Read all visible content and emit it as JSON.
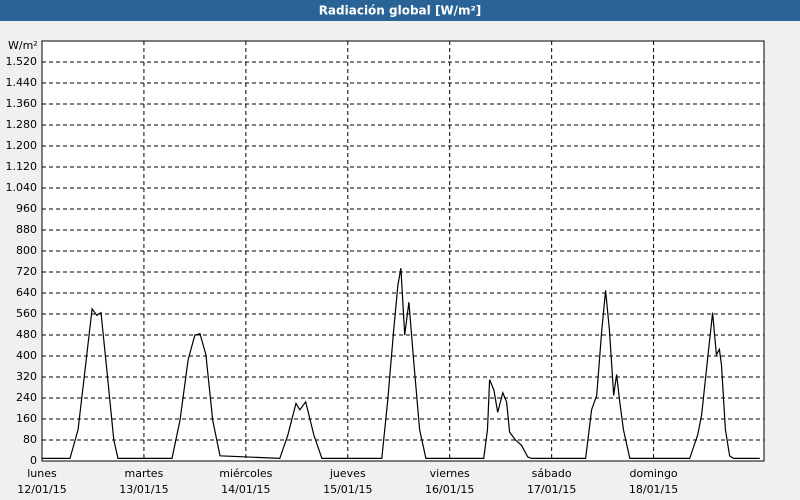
{
  "chart_data": {
    "type": "line",
    "title": "Radiación global [W/m²]",
    "y_unit": "W/m²",
    "x": [
      0,
      6.6,
      8.5,
      10.4,
      11.8,
      12.9,
      13.9,
      15.5,
      16.9,
      17.9,
      30.6,
      32.5,
      34.4,
      36,
      37.2,
      38.6,
      40.2,
      41.9,
      56,
      57.9,
      59.8,
      60.7,
      62.1,
      64,
      65.9,
      80,
      81.4,
      82.8,
      83.8,
      84.5,
      85.4,
      86.4,
      87.5,
      88.9,
      90.4,
      104,
      104.9,
      105.4,
      106.4,
      107.3,
      108.5,
      109.4,
      110.1,
      111.5,
      112.9,
      114.4,
      115.3,
      128,
      129.4,
      130.6,
      131.8,
      132.7,
      133.6,
      134.6,
      135.3,
      136,
      136.9,
      138.4,
      152.5,
      154.4,
      155.3,
      156.7,
      157.9,
      158.8,
      159.5,
      160,
      160.9,
      161.9,
      162.8,
      169
    ],
    "values": [
      10,
      10,
      120,
      385,
      580,
      555,
      565,
      310,
      80,
      10,
      10,
      155,
      385,
      480,
      485,
      405,
      155,
      20,
      10,
      100,
      220,
      195,
      225,
      100,
      10,
      10,
      230,
      500,
      670,
      735,
      480,
      605,
      385,
      120,
      10,
      10,
      120,
      310,
      270,
      185,
      260,
      225,
      110,
      80,
      60,
      15,
      10,
      10,
      195,
      250,
      500,
      650,
      500,
      250,
      330,
      230,
      120,
      10,
      10,
      100,
      175,
      385,
      565,
      405,
      425,
      365,
      120,
      20,
      10,
      10
    ],
    "color": "#000000",
    "xlim": [
      0,
      170
    ],
    "xticks": [
      {
        "value": 0,
        "label": "lunes",
        "date": "12/01/15"
      },
      {
        "value": 24,
        "label": "martes",
        "date": "13/01/15"
      },
      {
        "value": 48,
        "label": "miércoles",
        "date": "14/01/15"
      },
      {
        "value": 72,
        "label": "jueves",
        "date": "15/01/15"
      },
      {
        "value": 96,
        "label": "viernes",
        "date": "16/01/15"
      },
      {
        "value": 120,
        "label": "sábado",
        "date": "17/01/15"
      },
      {
        "value": 144,
        "label": "domingo",
        "date": "18/01/15"
      }
    ],
    "ylim": [
      0,
      1600
    ],
    "yticks": [
      0,
      80,
      160,
      240,
      320,
      400,
      480,
      560,
      640,
      720,
      800,
      880,
      960,
      {
        "value": 1040,
        "label": "1.040"
      },
      {
        "value": 1120,
        "label": "1.120"
      },
      {
        "value": 1200,
        "label": "1.200"
      },
      {
        "value": 1280,
        "label": "1.280"
      },
      {
        "value": 1360,
        "label": "1.360"
      },
      {
        "value": 1440,
        "label": "1.440"
      },
      {
        "value": 1520,
        "label": "1.520"
      }
    ],
    "grid": true
  }
}
